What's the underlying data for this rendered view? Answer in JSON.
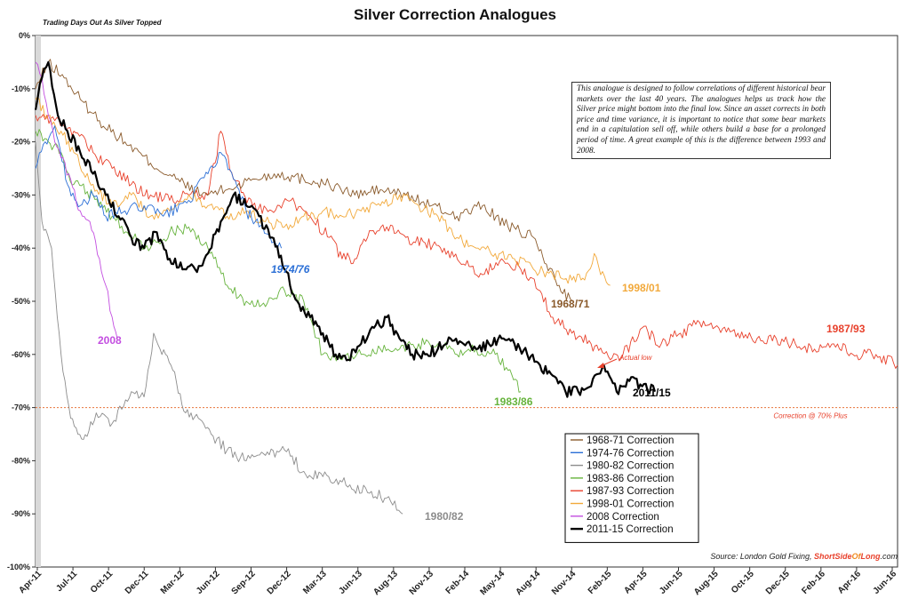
{
  "chart_data": {
    "type": "line",
    "title": "Silver Correction Analogues",
    "x_axis_note": "Trading Days Out As Silver Topped",
    "x_tick_labels": [
      "Apr-11",
      "Jul-11",
      "Oct-11",
      "Dec-11",
      "Mar-12",
      "Jun-12",
      "Sep-12",
      "Dec-12",
      "Mar-13",
      "Jun-13",
      "Aug-13",
      "Nov-13",
      "Feb-14",
      "May-14",
      "Aug-14",
      "Nov-14",
      "Feb-15",
      "Apr-15",
      "Jun-15",
      "Aug-15",
      "Oct-15",
      "Dec-15",
      "Feb-16",
      "Apr-16",
      "Jun-16"
    ],
    "y_tick_labels": [
      "0%",
      "-10%",
      "-20%",
      "-30%",
      "-40%",
      "-50%",
      "-60%",
      "-70%",
      "-80%",
      "-90%",
      "-100%"
    ],
    "ylim": [
      -100,
      0
    ],
    "x_range": [
      0,
      1350
    ],
    "x_units": "trading days from silver top",
    "reference_line": {
      "value": -70,
      "label": "Correction @ 70% Plus",
      "color": "#e8743b"
    },
    "annotation": {
      "text": "Actual low",
      "color": "#e8412c"
    },
    "series": [
      {
        "name": "1968-71 Correction",
        "label": "1968/71",
        "color": "#8a5a2b",
        "points": [
          [
            0,
            -10
          ],
          [
            20,
            -5
          ],
          [
            45,
            -8
          ],
          [
            70,
            -12
          ],
          [
            100,
            -16
          ],
          [
            140,
            -20
          ],
          [
            180,
            -24
          ],
          [
            220,
            -27
          ],
          [
            260,
            -30
          ],
          [
            300,
            -29
          ],
          [
            340,
            -27
          ],
          [
            380,
            -26
          ],
          [
            420,
            -27
          ],
          [
            460,
            -28
          ],
          [
            500,
            -30
          ],
          [
            540,
            -29
          ],
          [
            580,
            -30
          ],
          [
            620,
            -32
          ],
          [
            660,
            -34
          ],
          [
            700,
            -32
          ],
          [
            740,
            -36
          ],
          [
            780,
            -38
          ],
          [
            800,
            -43
          ],
          [
            820,
            -47
          ],
          [
            840,
            -50
          ]
        ]
      },
      {
        "name": "1974-76 Correction",
        "label": "1974/76",
        "color": "#2b6fd6",
        "points": [
          [
            0,
            -25
          ],
          [
            15,
            -20
          ],
          [
            30,
            -17
          ],
          [
            50,
            -28
          ],
          [
            70,
            -32
          ],
          [
            90,
            -30
          ],
          [
            110,
            -34
          ],
          [
            140,
            -33
          ],
          [
            170,
            -32
          ],
          [
            200,
            -34
          ],
          [
            240,
            -31
          ],
          [
            270,
            -26
          ],
          [
            290,
            -22
          ],
          [
            310,
            -27
          ],
          [
            330,
            -33
          ],
          [
            350,
            -36
          ],
          [
            370,
            -39
          ],
          [
            385,
            -40
          ]
        ]
      },
      {
        "name": "1980-82 Correction",
        "label": "1980/82",
        "color": "#8c8c8c",
        "points": [
          [
            0,
            -20
          ],
          [
            10,
            -35
          ],
          [
            25,
            -40
          ],
          [
            40,
            -60
          ],
          [
            55,
            -72
          ],
          [
            75,
            -76
          ],
          [
            95,
            -71
          ],
          [
            120,
            -73
          ],
          [
            150,
            -67
          ],
          [
            170,
            -68
          ],
          [
            185,
            -56
          ],
          [
            195,
            -59
          ],
          [
            215,
            -63
          ],
          [
            235,
            -71
          ],
          [
            255,
            -72
          ],
          [
            275,
            -75
          ],
          [
            300,
            -78
          ],
          [
            330,
            -80
          ],
          [
            360,
            -79
          ],
          [
            390,
            -78
          ],
          [
            420,
            -82
          ],
          [
            450,
            -83
          ],
          [
            480,
            -84
          ],
          [
            520,
            -86
          ],
          [
            550,
            -87
          ],
          [
            575,
            -90
          ]
        ]
      },
      {
        "name": "1983-86 Correction",
        "label": "1983/86",
        "color": "#66b33c",
        "points": [
          [
            0,
            -18
          ],
          [
            20,
            -20
          ],
          [
            40,
            -22
          ],
          [
            60,
            -28
          ],
          [
            90,
            -30
          ],
          [
            120,
            -34
          ],
          [
            150,
            -38
          ],
          [
            180,
            -40
          ],
          [
            210,
            -37
          ],
          [
            240,
            -36
          ],
          [
            270,
            -40
          ],
          [
            300,
            -47
          ],
          [
            330,
            -50
          ],
          [
            360,
            -51
          ],
          [
            390,
            -48
          ],
          [
            420,
            -50
          ],
          [
            450,
            -60
          ],
          [
            480,
            -61
          ],
          [
            510,
            -60
          ],
          [
            540,
            -59
          ],
          [
            570,
            -59
          ],
          [
            600,
            -58
          ],
          [
            630,
            -58
          ],
          [
            660,
            -60
          ],
          [
            690,
            -59
          ],
          [
            720,
            -60
          ],
          [
            740,
            -63
          ],
          [
            760,
            -67
          ]
        ]
      },
      {
        "name": "1987-93 Correction",
        "label": "1987/93",
        "color": "#e8412c",
        "points": [
          [
            0,
            -15
          ],
          [
            30,
            -16
          ],
          [
            60,
            -18
          ],
          [
            90,
            -22
          ],
          [
            120,
            -25
          ],
          [
            150,
            -28
          ],
          [
            180,
            -30
          ],
          [
            210,
            -31
          ],
          [
            240,
            -30
          ],
          [
            270,
            -30
          ],
          [
            290,
            -18
          ],
          [
            310,
            -27
          ],
          [
            340,
            -32
          ],
          [
            370,
            -33
          ],
          [
            400,
            -31
          ],
          [
            430,
            -34
          ],
          [
            460,
            -38
          ],
          [
            480,
            -42
          ],
          [
            500,
            -42
          ],
          [
            520,
            -38
          ],
          [
            550,
            -36
          ],
          [
            580,
            -38
          ],
          [
            610,
            -39
          ],
          [
            640,
            -40
          ],
          [
            670,
            -43
          ],
          [
            700,
            -45
          ],
          [
            730,
            -42
          ],
          [
            760,
            -44
          ],
          [
            790,
            -48
          ],
          [
            810,
            -53
          ],
          [
            840,
            -56
          ],
          [
            870,
            -58
          ],
          [
            900,
            -61
          ],
          [
            920,
            -60
          ],
          [
            950,
            -55
          ],
          [
            980,
            -58
          ],
          [
            1010,
            -56
          ],
          [
            1040,
            -54
          ],
          [
            1070,
            -55
          ],
          [
            1100,
            -56
          ],
          [
            1130,
            -57
          ],
          [
            1160,
            -57
          ],
          [
            1190,
            -58
          ],
          [
            1220,
            -59
          ],
          [
            1250,
            -58
          ],
          [
            1280,
            -60
          ],
          [
            1310,
            -60
          ],
          [
            1350,
            -62
          ]
        ]
      },
      {
        "name": "1998-01 Correction",
        "label": "1998/01",
        "color": "#f2a93b",
        "points": [
          [
            0,
            -12
          ],
          [
            20,
            -15
          ],
          [
            40,
            -18
          ],
          [
            60,
            -22
          ],
          [
            90,
            -28
          ],
          [
            120,
            -32
          ],
          [
            150,
            -30
          ],
          [
            180,
            -34
          ],
          [
            210,
            -33
          ],
          [
            240,
            -30
          ],
          [
            270,
            -32
          ],
          [
            300,
            -34
          ],
          [
            330,
            -33
          ],
          [
            360,
            -35
          ],
          [
            390,
            -36
          ],
          [
            420,
            -34
          ],
          [
            450,
            -33
          ],
          [
            480,
            -34
          ],
          [
            510,
            -33
          ],
          [
            540,
            -32
          ],
          [
            570,
            -30
          ],
          [
            600,
            -32
          ],
          [
            630,
            -34
          ],
          [
            660,
            -38
          ],
          [
            690,
            -40
          ],
          [
            720,
            -41
          ],
          [
            750,
            -42
          ],
          [
            780,
            -44
          ],
          [
            810,
            -45
          ],
          [
            840,
            -46
          ],
          [
            860,
            -46
          ],
          [
            875,
            -41
          ],
          [
            885,
            -45
          ],
          [
            900,
            -47
          ]
        ]
      },
      {
        "name": "2008 Correction",
        "label": "2008",
        "color": "#c34ee0",
        "points": [
          [
            0,
            -5
          ],
          [
            10,
            -8
          ],
          [
            20,
            -15
          ],
          [
            30,
            -20
          ],
          [
            40,
            -23
          ],
          [
            55,
            -27
          ],
          [
            70,
            -33
          ],
          [
            85,
            -35
          ],
          [
            100,
            -42
          ],
          [
            110,
            -47
          ],
          [
            120,
            -53
          ],
          [
            128,
            -57
          ]
        ]
      },
      {
        "name": "2011-15 Correction",
        "label": "2011/15",
        "color": "#000000",
        "points": [
          [
            0,
            -14
          ],
          [
            10,
            -8
          ],
          [
            20,
            -5
          ],
          [
            35,
            -15
          ],
          [
            50,
            -18
          ],
          [
            70,
            -22
          ],
          [
            90,
            -26
          ],
          [
            110,
            -30
          ],
          [
            130,
            -34
          ],
          [
            150,
            -38
          ],
          [
            170,
            -40
          ],
          [
            190,
            -37
          ],
          [
            210,
            -42
          ],
          [
            230,
            -44
          ],
          [
            250,
            -44
          ],
          [
            270,
            -41
          ],
          [
            290,
            -35
          ],
          [
            310,
            -30
          ],
          [
            330,
            -32
          ],
          [
            350,
            -34
          ],
          [
            370,
            -38
          ],
          [
            390,
            -44
          ],
          [
            410,
            -50
          ],
          [
            430,
            -53
          ],
          [
            450,
            -56
          ],
          [
            470,
            -60
          ],
          [
            490,
            -61
          ],
          [
            510,
            -58
          ],
          [
            530,
            -55
          ],
          [
            550,
            -53
          ],
          [
            570,
            -57
          ],
          [
            590,
            -60
          ],
          [
            610,
            -60
          ],
          [
            630,
            -59
          ],
          [
            650,
            -57
          ],
          [
            670,
            -58
          ],
          [
            690,
            -59
          ],
          [
            710,
            -58
          ],
          [
            730,
            -57
          ],
          [
            750,
            -58
          ],
          [
            770,
            -60
          ],
          [
            790,
            -62
          ],
          [
            810,
            -64
          ],
          [
            830,
            -67
          ],
          [
            850,
            -67
          ],
          [
            870,
            -66
          ],
          [
            890,
            -62
          ],
          [
            910,
            -67
          ],
          [
            930,
            -65
          ],
          [
            950,
            -66
          ],
          [
            970,
            -67
          ]
        ]
      }
    ],
    "legend_placement": "bottom-center"
  },
  "textbox": {
    "text": "This analogue is designed to follow correlations of different historical bear markets over the last 40 years. The analogues helps us track how the Silver price might bottom into the final low. Since an asset corrects in both price and time variance, it is important to notice that some bear markets end in a capitulation sell off, while others build a base for a prolonged period of time. A great example of this is the difference between 1993 and 2008."
  },
  "source": {
    "prefix": "Source: London Gold Fixing, ",
    "brand_a": "ShortSide",
    "brand_b": "Of",
    "brand_c": "Long",
    "suffix": ".com"
  }
}
